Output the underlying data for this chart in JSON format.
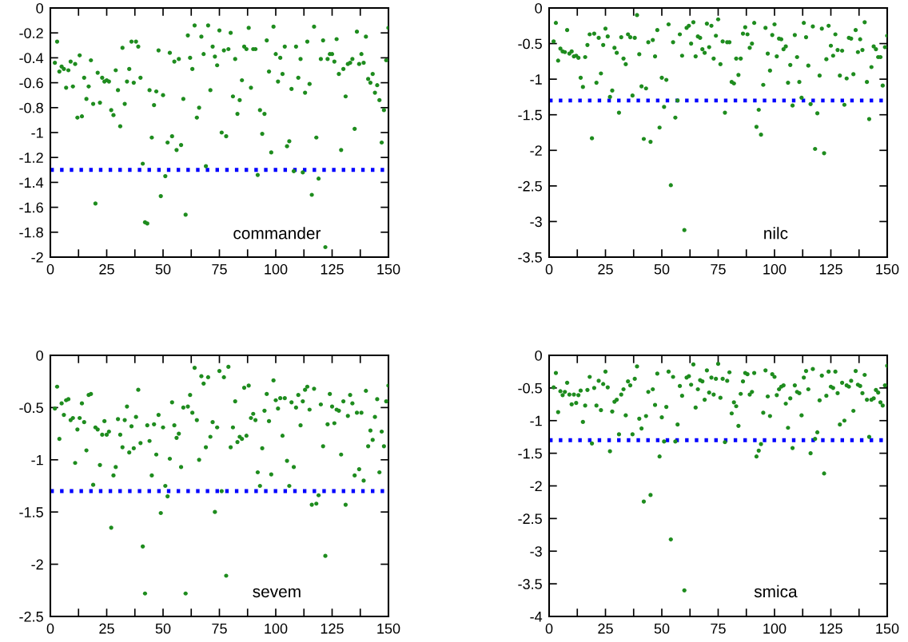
{
  "chart_data": [
    {
      "type": "scatter",
      "annotations": [
        "commander"
      ],
      "marker": "circle",
      "xlim": [
        0,
        150
      ],
      "ylim": [
        -2,
        0
      ],
      "xticks": [
        0,
        {
          "value": 12.5,
          "label": null
        },
        25,
        {
          "value": 37.5,
          "label": null
        },
        50,
        {
          "value": 62.5,
          "label": null
        },
        75,
        {
          "value": 87.5,
          "label": null
        },
        100,
        {
          "value": 112.5,
          "label": null
        },
        125,
        {
          "value": 137.5,
          "label": null
        },
        150
      ],
      "yticks": [
        -2,
        -1.8,
        -1.6,
        -1.4,
        -1.2,
        -1,
        -0.8,
        -0.6,
        -0.4,
        -0.2,
        0
      ],
      "ref_lines": [
        {
          "axis": "y",
          "value": -1.3,
          "color": "#0000ff",
          "line_style": "dotted"
        }
      ],
      "x": [
        2,
        3,
        4,
        5,
        6,
        7,
        8,
        9,
        10,
        11,
        12,
        13,
        14,
        15,
        16,
        17,
        18,
        19,
        20,
        21,
        22,
        23,
        24,
        25,
        26,
        27,
        28,
        29,
        30,
        31,
        32,
        33,
        34,
        35,
        36,
        37,
        38,
        39,
        40,
        41,
        42,
        43,
        44,
        45,
        46,
        47,
        48,
        49,
        50,
        51,
        52,
        53,
        54,
        55,
        56,
        57,
        58,
        59,
        60,
        61,
        62,
        63,
        64,
        65,
        66,
        67,
        68,
        69,
        70,
        71,
        72,
        73,
        74,
        75,
        76,
        77,
        78,
        79,
        80,
        81,
        82,
        83,
        84,
        85,
        86,
        87,
        88,
        89,
        90,
        91,
        92,
        93,
        94,
        95,
        96,
        97,
        98,
        99,
        100,
        101,
        102,
        103,
        104,
        105,
        106,
        107,
        108,
        109,
        110,
        111,
        112,
        113,
        114,
        115,
        116,
        117,
        118,
        119,
        120,
        121,
        122,
        123,
        124,
        125,
        126,
        127,
        128,
        129,
        130,
        131,
        132,
        133,
        134,
        135,
        136,
        137,
        138,
        139,
        140,
        141,
        142,
        143,
        144,
        145,
        146,
        147,
        148,
        149,
        150
      ],
      "series": [
        {
          "color": "#1e8c1e",
          "values": [
            -0.44,
            -0.27,
            -0.51,
            -0.47,
            -0.49,
            -0.64,
            -0.5,
            -0.43,
            -0.63,
            -0.45,
            -0.88,
            -0.38,
            -0.87,
            -0.56,
            -0.73,
            -0.63,
            -0.42,
            -0.77,
            -1.57,
            -0.52,
            -0.76,
            -0.56,
            -0.59,
            -0.58,
            -0.59,
            -0.82,
            -0.86,
            -0.5,
            -0.66,
            -0.95,
            -0.32,
            -0.77,
            -0.59,
            -0.49,
            -0.27,
            -0.6,
            -0.27,
            -0.31,
            -0.56,
            -1.25,
            -1.72,
            -1.73,
            -0.66,
            -1.04,
            -0.78,
            -0.67,
            -0.34,
            -1.51,
            -0.7,
            -1.35,
            -1.08,
            -0.36,
            -1.03,
            -0.43,
            -1.14,
            -0.41,
            -1.1,
            -0.73,
            -1.66,
            -0.22,
            -0.4,
            -0.49,
            -0.14,
            -0.88,
            -0.8,
            -0.23,
            -0.37,
            -1.27,
            -0.14,
            -0.66,
            -0.31,
            -0.39,
            -0.46,
            -0.18,
            -1.0,
            -0.34,
            -1.03,
            -0.33,
            -0.2,
            -0.71,
            -0.41,
            -0.85,
            -0.74,
            -0.58,
            -0.31,
            -0.33,
            -0.16,
            -0.64,
            -0.33,
            -0.33,
            -1.34,
            -0.82,
            -1.01,
            -0.85,
            -0.26,
            -0.51,
            -1.16,
            -0.15,
            -0.37,
            -0.59,
            -0.4,
            -0.53,
            -0.31,
            -1.11,
            -1.07,
            -0.65,
            -1.31,
            -0.31,
            -0.56,
            -0.41,
            -1.32,
            -0.68,
            -0.27,
            -0.61,
            -1.5,
            -0.15,
            -1.04,
            -1.37,
            -0.41,
            -0.26,
            -1.92,
            -0.41,
            -0.37,
            -0.37,
            -0.43,
            -0.25,
            -0.53,
            -1.14,
            -0.49,
            -0.71,
            -0.45,
            -0.44,
            -0.41,
            -0.97,
            -0.19,
            -0.45,
            -0.37,
            -0.44,
            -0.23,
            -0.57,
            -0.6,
            -0.53,
            -0.68,
            -0.62,
            -0.74,
            -1.08,
            -0.82,
            -0.42,
            -0.16
          ]
        }
      ]
    },
    {
      "type": "scatter",
      "annotations": [
        "nilc"
      ],
      "marker": "circle",
      "xlim": [
        0,
        150
      ],
      "ylim": [
        -3.5,
        0
      ],
      "xticks": [
        0,
        {
          "value": 12.5,
          "label": null
        },
        25,
        {
          "value": 37.5,
          "label": null
        },
        50,
        {
          "value": 62.5,
          "label": null
        },
        75,
        {
          "value": 87.5,
          "label": null
        },
        100,
        {
          "value": 112.5,
          "label": null
        },
        125,
        {
          "value": 137.5,
          "label": null
        },
        150
      ],
      "yticks": [
        -3.5,
        -3,
        -2.5,
        -2,
        -1.5,
        -1,
        -0.5,
        0
      ],
      "ref_lines": [
        {
          "axis": "y",
          "value": -1.3,
          "color": "#0000ff",
          "line_style": "dotted"
        }
      ],
      "x": [
        2,
        3,
        4,
        5,
        6,
        7,
        8,
        9,
        10,
        11,
        12,
        13,
        14,
        15,
        16,
        17,
        18,
        19,
        20,
        21,
        22,
        23,
        24,
        25,
        26,
        27,
        28,
        29,
        30,
        31,
        32,
        33,
        34,
        35,
        36,
        37,
        38,
        39,
        40,
        41,
        42,
        43,
        44,
        45,
        46,
        47,
        48,
        49,
        50,
        51,
        52,
        53,
        54,
        55,
        56,
        57,
        58,
        59,
        60,
        61,
        62,
        63,
        64,
        65,
        66,
        67,
        68,
        69,
        70,
        71,
        72,
        73,
        74,
        75,
        76,
        77,
        78,
        79,
        80,
        81,
        82,
        83,
        84,
        85,
        86,
        87,
        88,
        89,
        90,
        91,
        92,
        93,
        94,
        95,
        96,
        97,
        98,
        99,
        100,
        101,
        102,
        103,
        104,
        105,
        106,
        107,
        108,
        109,
        110,
        111,
        112,
        113,
        114,
        115,
        116,
        117,
        118,
        119,
        120,
        121,
        122,
        123,
        124,
        125,
        126,
        127,
        128,
        129,
        130,
        131,
        132,
        133,
        134,
        135,
        136,
        137,
        138,
        139,
        140,
        141,
        142,
        143,
        144,
        145,
        146,
        147,
        148,
        149,
        150
      ],
      "series": [
        {
          "color": "#1e8c1e",
          "values": [
            -0.47,
            -0.21,
            -0.74,
            -0.57,
            -0.61,
            -0.62,
            -0.31,
            -0.64,
            -0.61,
            -0.68,
            -0.67,
            -0.7,
            -0.98,
            -1.11,
            -0.69,
            -0.52,
            -0.37,
            -1.83,
            -0.36,
            -1.05,
            -0.42,
            -0.92,
            -0.52,
            -0.29,
            -0.4,
            -1.25,
            -1.16,
            -0.56,
            -0.63,
            -1.47,
            -0.41,
            -0.71,
            -0.79,
            -0.37,
            -0.41,
            -1.23,
            -0.42,
            -0.1,
            -0.65,
            -1.1,
            -1.84,
            -1.13,
            -0.48,
            -1.88,
            -0.45,
            -0.68,
            -0.31,
            -1.68,
            -0.98,
            -1.39,
            -1.01,
            -0.23,
            -2.49,
            -0.48,
            -1.54,
            -1.3,
            -0.37,
            -0.67,
            -3.12,
            -0.28,
            -0.25,
            -0.5,
            -0.2,
            -0.68,
            -0.4,
            -0.42,
            -0.58,
            -0.63,
            -0.22,
            -0.55,
            -0.25,
            -0.71,
            -0.39,
            -0.16,
            -0.79,
            -0.47,
            -1.47,
            -0.48,
            -0.48,
            -1.04,
            -1.06,
            -0.71,
            -0.94,
            -0.71,
            -0.36,
            -0.27,
            -0.37,
            -0.56,
            -0.5,
            -0.21,
            -1.67,
            -1.43,
            -1.78,
            -1.08,
            -0.28,
            -0.64,
            -0.88,
            -0.38,
            -0.23,
            -0.68,
            -0.43,
            -0.44,
            -0.58,
            -0.54,
            -1.05,
            -0.8,
            -1.37,
            -0.38,
            -0.69,
            -1.04,
            -1.26,
            -0.21,
            -0.41,
            -0.81,
            -1.35,
            -0.26,
            -1.98,
            -1.48,
            -0.95,
            -0.29,
            -2.04,
            -0.72,
            -0.25,
            -0.53,
            -0.67,
            -0.37,
            -0.59,
            -0.95,
            -0.6,
            -1.36,
            -0.99,
            -0.42,
            -0.43,
            -0.93,
            -0.31,
            -0.62,
            -0.44,
            -0.59,
            -0.2,
            -1.04,
            -1.56,
            -0.83,
            -0.54,
            -0.58,
            -0.69,
            -0.69,
            -1.09,
            -0.55,
            -0.39
          ]
        }
      ]
    },
    {
      "type": "scatter",
      "annotations": [
        "sevem"
      ],
      "marker": "circle",
      "xlim": [
        0,
        150
      ],
      "ylim": [
        -2.5,
        0
      ],
      "xticks": [
        0,
        {
          "value": 12.5,
          "label": null
        },
        25,
        {
          "value": 37.5,
          "label": null
        },
        50,
        {
          "value": 62.5,
          "label": null
        },
        75,
        {
          "value": 87.5,
          "label": null
        },
        100,
        {
          "value": 112.5,
          "label": null
        },
        125,
        {
          "value": 137.5,
          "label": null
        },
        150
      ],
      "yticks": [
        -2.5,
        -2,
        -1.5,
        -1,
        -0.5,
        0
      ],
      "ref_lines": [
        {
          "axis": "y",
          "value": -1.3,
          "color": "#0000ff",
          "line_style": "dotted"
        }
      ],
      "x": [
        2,
        3,
        4,
        5,
        6,
        7,
        8,
        9,
        10,
        11,
        12,
        13,
        14,
        15,
        16,
        17,
        18,
        19,
        20,
        21,
        22,
        23,
        24,
        25,
        26,
        27,
        28,
        29,
        30,
        31,
        32,
        33,
        34,
        35,
        36,
        37,
        38,
        39,
        40,
        41,
        42,
        43,
        44,
        45,
        46,
        47,
        48,
        49,
        50,
        51,
        52,
        53,
        54,
        55,
        56,
        57,
        58,
        59,
        60,
        61,
        62,
        63,
        64,
        65,
        66,
        67,
        68,
        69,
        70,
        71,
        72,
        73,
        74,
        75,
        76,
        77,
        78,
        79,
        80,
        81,
        82,
        83,
        84,
        85,
        86,
        87,
        88,
        89,
        90,
        91,
        92,
        93,
        94,
        95,
        96,
        97,
        98,
        99,
        100,
        101,
        102,
        103,
        104,
        105,
        106,
        107,
        108,
        109,
        110,
        111,
        112,
        113,
        114,
        115,
        116,
        117,
        118,
        119,
        120,
        121,
        122,
        123,
        124,
        125,
        126,
        127,
        128,
        129,
        130,
        131,
        132,
        133,
        134,
        135,
        136,
        137,
        138,
        139,
        140,
        141,
        142,
        143,
        144,
        145,
        146,
        147,
        148,
        149,
        150
      ],
      "series": [
        {
          "color": "#1e8c1e",
          "values": [
            -0.51,
            -0.3,
            -0.8,
            -0.46,
            -0.57,
            -0.43,
            -0.42,
            -0.62,
            -0.6,
            -1.03,
            -0.71,
            -0.6,
            -0.46,
            -0.64,
            -0.91,
            -0.38,
            -0.37,
            -1.24,
            -0.69,
            -0.71,
            -1.05,
            -0.76,
            -0.63,
            -0.76,
            -0.73,
            -1.65,
            -1.15,
            -1.07,
            -0.61,
            -0.76,
            -0.88,
            -0.62,
            -0.49,
            -0.93,
            -0.68,
            -0.89,
            -0.59,
            -0.33,
            -0.84,
            -1.83,
            -2.28,
            -0.67,
            -0.82,
            -1.15,
            -0.66,
            -0.95,
            -0.57,
            -1.51,
            -0.69,
            -1.25,
            -1.35,
            -0.99,
            -0.45,
            -0.67,
            -0.79,
            -0.75,
            -1.07,
            -0.5,
            -2.28,
            -0.49,
            -0.38,
            -0.55,
            -0.12,
            -0.62,
            -1.0,
            -0.2,
            -0.27,
            -0.88,
            -0.21,
            -0.78,
            -0.64,
            -1.5,
            -0.69,
            -0.15,
            -1.3,
            -0.21,
            -2.11,
            -0.11,
            -0.88,
            -0.69,
            -0.44,
            -0.83,
            -0.78,
            -0.8,
            -0.31,
            -0.77,
            -0.29,
            -0.6,
            -0.56,
            -0.62,
            -1.12,
            -1.25,
            -0.89,
            -0.53,
            -0.37,
            -0.63,
            -1.14,
            -0.24,
            -0.43,
            -0.51,
            -0.41,
            -0.77,
            -0.41,
            -1.01,
            -1.25,
            -0.45,
            -1.07,
            -0.5,
            -0.38,
            -0.67,
            -0.44,
            -0.33,
            -0.3,
            -0.52,
            -1.43,
            -0.32,
            -1.42,
            -1.34,
            -0.47,
            -0.87,
            -1.92,
            -0.66,
            -0.37,
            -0.49,
            -0.65,
            -0.52,
            -0.53,
            -0.95,
            -0.44,
            -1.43,
            -0.58,
            -0.38,
            -0.46,
            -1.15,
            -0.55,
            -1.09,
            -0.55,
            -1.2,
            -0.34,
            -0.87,
            -0.72,
            -0.81,
            -0.59,
            -0.42,
            -1.12,
            -0.73,
            -0.87,
            -0.44,
            -0.29
          ]
        }
      ]
    },
    {
      "type": "scatter",
      "annotations": [
        "smica"
      ],
      "marker": "circle",
      "xlim": [
        0,
        150
      ],
      "ylim": [
        -4,
        0
      ],
      "xticks": [
        0,
        {
          "value": 12.5,
          "label": null
        },
        25,
        {
          "value": 37.5,
          "label": null
        },
        50,
        {
          "value": 62.5,
          "label": null
        },
        75,
        {
          "value": 87.5,
          "label": null
        },
        100,
        {
          "value": 112.5,
          "label": null
        },
        125,
        {
          "value": 137.5,
          "label": null
        },
        150
      ],
      "yticks": [
        -4,
        -3.5,
        -3,
        -2.5,
        -2,
        -1.5,
        -1,
        -0.5,
        0
      ],
      "ref_lines": [
        {
          "axis": "y",
          "value": -1.3,
          "color": "#0000ff",
          "line_style": "dotted"
        }
      ],
      "x": [
        2,
        3,
        4,
        5,
        6,
        7,
        8,
        9,
        10,
        11,
        12,
        13,
        14,
        15,
        16,
        17,
        18,
        19,
        20,
        21,
        22,
        23,
        24,
        25,
        26,
        27,
        28,
        29,
        30,
        31,
        32,
        33,
        34,
        35,
        36,
        37,
        38,
        39,
        40,
        41,
        42,
        43,
        44,
        45,
        46,
        47,
        48,
        49,
        50,
        51,
        52,
        53,
        54,
        55,
        56,
        57,
        58,
        59,
        60,
        61,
        62,
        63,
        64,
        65,
        66,
        67,
        68,
        69,
        70,
        71,
        72,
        73,
        74,
        75,
        76,
        77,
        78,
        79,
        80,
        81,
        82,
        83,
        84,
        85,
        86,
        87,
        88,
        89,
        90,
        91,
        92,
        93,
        94,
        95,
        96,
        97,
        98,
        99,
        100,
        101,
        102,
        103,
        104,
        105,
        106,
        107,
        108,
        109,
        110,
        111,
        112,
        113,
        114,
        115,
        116,
        117,
        118,
        119,
        120,
        121,
        122,
        123,
        124,
        125,
        126,
        127,
        128,
        129,
        130,
        131,
        132,
        133,
        134,
        135,
        136,
        137,
        138,
        139,
        140,
        141,
        142,
        143,
        144,
        145,
        146,
        147,
        148,
        149,
        150
      ],
      "series": [
        {
          "color": "#1e8c1e",
          "values": [
            -0.49,
            -0.27,
            -0.87,
            -0.55,
            -0.61,
            -0.56,
            -0.42,
            -0.6,
            -0.75,
            -0.6,
            -0.73,
            -0.61,
            -0.54,
            -1.02,
            -0.77,
            -0.53,
            -0.33,
            -1.35,
            -0.5,
            -0.77,
            -0.39,
            -0.84,
            -0.44,
            -0.25,
            -0.49,
            -1.47,
            -0.86,
            -0.71,
            -0.68,
            -1.21,
            -0.6,
            -0.52,
            -0.92,
            -0.4,
            -0.46,
            -1.21,
            -0.36,
            -0.17,
            -0.97,
            -1.12,
            -2.24,
            -0.93,
            -0.56,
            -2.14,
            -0.52,
            -0.76,
            -0.28,
            -1.55,
            -0.95,
            -1.32,
            -0.79,
            -0.25,
            -2.82,
            -0.33,
            -1.32,
            -1.06,
            -0.47,
            -0.62,
            -3.6,
            -0.34,
            -0.32,
            -0.45,
            -0.14,
            -0.8,
            -0.52,
            -0.38,
            -0.4,
            -0.68,
            -0.23,
            -0.57,
            -0.34,
            -0.6,
            -0.36,
            -0.13,
            -0.65,
            -0.36,
            -1.33,
            -0.39,
            -0.26,
            -0.89,
            -0.72,
            -0.78,
            -1.08,
            -0.59,
            -0.4,
            -0.27,
            -0.29,
            -0.6,
            -0.56,
            -0.27,
            -1.55,
            -1.46,
            -1.36,
            -0.88,
            -0.23,
            -0.63,
            -0.93,
            -0.29,
            -0.33,
            -0.61,
            -0.52,
            -0.48,
            -0.46,
            -0.74,
            -1.11,
            -0.66,
            -1.42,
            -0.46,
            -0.56,
            -0.58,
            -0.92,
            -0.34,
            -0.24,
            -0.52,
            -1.5,
            -0.21,
            -1.28,
            -1.18,
            -0.69,
            -0.31,
            -1.81,
            -0.62,
            -0.25,
            -0.48,
            -0.5,
            -0.25,
            -0.58,
            -1.06,
            -0.42,
            -1.0,
            -0.46,
            -0.48,
            -0.39,
            -0.85,
            -0.24,
            -0.45,
            -0.47,
            -0.58,
            -0.3,
            -0.68,
            -1.25,
            -0.68,
            -0.66,
            -0.53,
            -0.57,
            -0.72,
            -0.77,
            -0.46,
            -0.16
          ]
        }
      ]
    }
  ]
}
